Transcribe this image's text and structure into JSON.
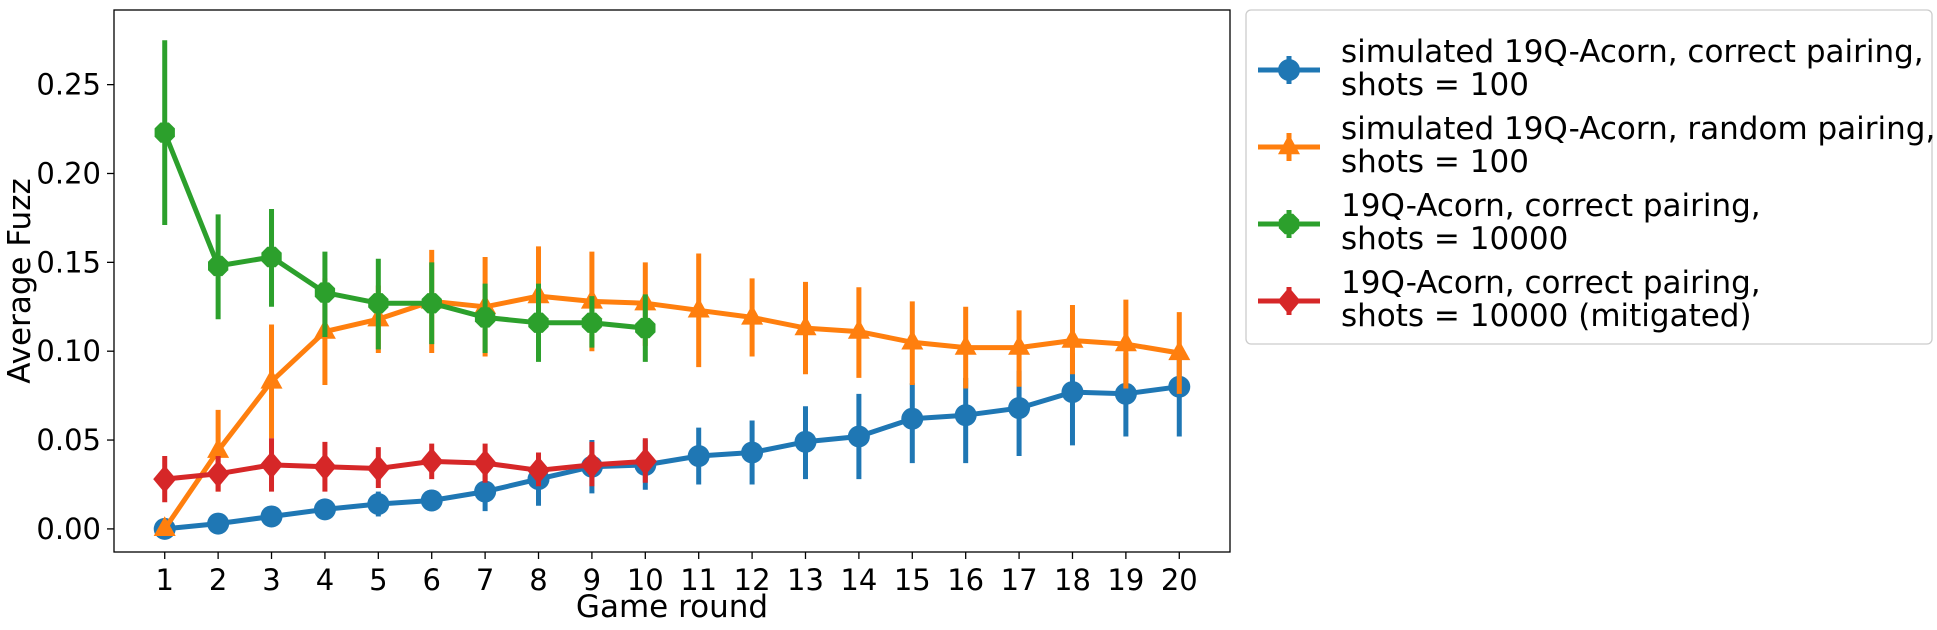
{
  "chart_data": {
    "type": "line",
    "xlabel": "Game round",
    "ylabel": "Average Fuzz",
    "xlim": [
      0.05,
      20.95
    ],
    "ylim": [
      -0.013,
      0.292
    ],
    "x_ticks": [
      1,
      2,
      3,
      4,
      5,
      6,
      7,
      8,
      9,
      10,
      11,
      12,
      13,
      14,
      15,
      16,
      17,
      18,
      19,
      20
    ],
    "y_ticks": [
      0.0,
      0.05,
      0.1,
      0.15,
      0.2,
      0.25
    ],
    "y_tick_labels": [
      "0.00",
      "0.05",
      "0.10",
      "0.15",
      "0.20",
      "0.25"
    ],
    "legend_position": "outside-right",
    "series": [
      {
        "name_line1": "simulated 19Q-Acorn, correct pairing,",
        "name_line2": "shots = 100",
        "color": "#1f77b4",
        "marker": "circle",
        "x": [
          1,
          2,
          3,
          4,
          5,
          6,
          7,
          8,
          9,
          10,
          11,
          12,
          13,
          14,
          15,
          16,
          17,
          18,
          19,
          20
        ],
        "values": [
          0.0,
          0.003,
          0.007,
          0.011,
          0.014,
          0.016,
          0.021,
          0.028,
          0.035,
          0.036,
          0.041,
          0.043,
          0.049,
          0.052,
          0.062,
          0.064,
          0.068,
          0.077,
          0.076,
          0.08
        ],
        "err_low": [
          0.0,
          0.001,
          0.003,
          0.007,
          0.007,
          0.01,
          0.01,
          0.013,
          0.02,
          0.022,
          0.025,
          0.025,
          0.028,
          0.028,
          0.037,
          0.037,
          0.041,
          0.047,
          0.052,
          0.052
        ],
        "err_high": [
          0.0,
          0.005,
          0.011,
          0.015,
          0.021,
          0.022,
          0.032,
          0.043,
          0.05,
          0.05,
          0.057,
          0.061,
          0.069,
          0.076,
          0.082,
          0.085,
          0.089,
          0.099,
          0.099,
          0.103
        ]
      },
      {
        "name_line1": "simulated 19Q-Acorn, random pairing,",
        "name_line2": "shots = 100",
        "color": "#ff7f0e",
        "marker": "triangle",
        "x": [
          1,
          2,
          3,
          4,
          5,
          6,
          7,
          8,
          9,
          10,
          11,
          12,
          13,
          14,
          15,
          16,
          17,
          18,
          19,
          20
        ],
        "values": [
          0.0,
          0.044,
          0.083,
          0.111,
          0.118,
          0.128,
          0.125,
          0.131,
          0.128,
          0.127,
          0.123,
          0.119,
          0.113,
          0.111,
          0.105,
          0.102,
          0.102,
          0.106,
          0.104,
          0.099
        ],
        "err_low": [
          0.0,
          0.021,
          0.051,
          0.081,
          0.099,
          0.099,
          0.097,
          0.105,
          0.1,
          0.103,
          0.091,
          0.097,
          0.087,
          0.085,
          0.081,
          0.079,
          0.08,
          0.087,
          0.079,
          0.076
        ],
        "err_high": [
          0.0,
          0.067,
          0.115,
          0.141,
          0.137,
          0.157,
          0.153,
          0.159,
          0.156,
          0.15,
          0.155,
          0.141,
          0.139,
          0.136,
          0.128,
          0.125,
          0.123,
          0.126,
          0.129,
          0.122
        ]
      },
      {
        "name_line1": "19Q-Acorn, correct pairing,",
        "name_line2": "shots = 10000",
        "color": "#2ca02c",
        "marker": "octagon",
        "x": [
          1,
          2,
          3,
          4,
          5,
          6,
          7,
          8,
          9,
          10
        ],
        "values": [
          0.223,
          0.148,
          0.153,
          0.133,
          0.127,
          0.127,
          0.119,
          0.116,
          0.116,
          0.113
        ],
        "err_low": [
          0.171,
          0.118,
          0.125,
          0.108,
          0.101,
          0.104,
          0.099,
          0.094,
          0.102,
          0.094
        ],
        "err_high": [
          0.275,
          0.177,
          0.18,
          0.156,
          0.152,
          0.15,
          0.138,
          0.138,
          0.131,
          0.132
        ]
      },
      {
        "name_line1": "19Q-Acorn, correct pairing,",
        "name_line2": "shots = 10000 (mitigated)",
        "color": "#d62728",
        "marker": "diamond",
        "x": [
          1,
          2,
          3,
          4,
          5,
          6,
          7,
          8,
          9,
          10
        ],
        "values": [
          0.028,
          0.031,
          0.036,
          0.035,
          0.034,
          0.038,
          0.037,
          0.033,
          0.036,
          0.038
        ],
        "err_low": [
          0.015,
          0.021,
          0.021,
          0.021,
          0.023,
          0.028,
          0.026,
          0.024,
          0.024,
          0.026
        ],
        "err_high": [
          0.041,
          0.041,
          0.051,
          0.049,
          0.046,
          0.048,
          0.048,
          0.043,
          0.049,
          0.051
        ]
      }
    ]
  }
}
